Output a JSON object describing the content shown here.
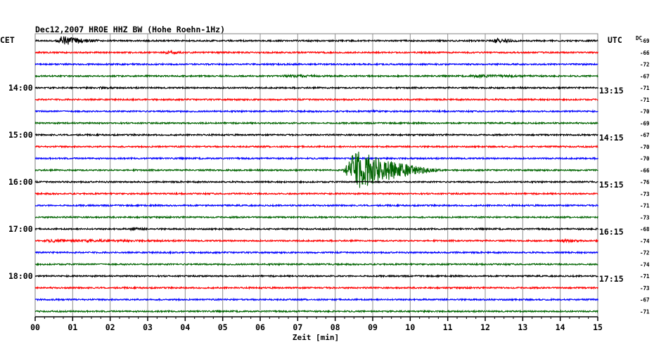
{
  "header": {
    "title": "Dec12,2007   HROE HHZ BW (Hohe Roehn-1Hz)",
    "left_tz": "CET",
    "right_tz": "UTC",
    "dc_label": "DC"
  },
  "chart_data": {
    "type": "line",
    "title": "Dec12,2007   HROE HHZ BW (Hohe Roehn-1Hz)",
    "xlabel": "Zeit [min]",
    "xlim": [
      0,
      15
    ],
    "x_ticks": [
      "00",
      "01",
      "02",
      "03",
      "04",
      "05",
      "06",
      "07",
      "08",
      "09",
      "10",
      "11",
      "12",
      "13",
      "14",
      "15"
    ],
    "grid": true,
    "left_hour_labels": [
      {
        "label": "14:00",
        "row": 4
      },
      {
        "label": "15:00",
        "row": 8
      },
      {
        "label": "16:00",
        "row": 12
      },
      {
        "label": "17:00",
        "row": 16
      },
      {
        "label": "18:00",
        "row": 20
      }
    ],
    "right_hour_labels": [
      {
        "label": "13:15",
        "row": 4
      },
      {
        "label": "14:15",
        "row": 8
      },
      {
        "label": "15:15",
        "row": 12
      },
      {
        "label": "16:15",
        "row": 16
      },
      {
        "label": "17:15",
        "row": 20
      }
    ],
    "trace_colors": [
      "#000000",
      "#ff0000",
      "#0000ff",
      "#006400"
    ],
    "dc_offsets": [
      -69,
      -66,
      -72,
      -67,
      -71,
      -71,
      -70,
      -69,
      -67,
      -70,
      -70,
      -66,
      -76,
      -73,
      -71,
      -73,
      -68,
      -74,
      -72,
      -74,
      -71,
      -73,
      -67,
      -71
    ],
    "events": [
      {
        "row": 0,
        "start_min": 0.55,
        "end_min": 1.9,
        "amp": 7
      },
      {
        "row": 0,
        "start_min": 12.2,
        "end_min": 13.0,
        "amp": 4
      },
      {
        "row": 1,
        "start_min": 3.4,
        "end_min": 4.1,
        "amp": 3
      },
      {
        "row": 3,
        "start_min": 6.5,
        "end_min": 8.5,
        "amp": 1.8
      },
      {
        "row": 3,
        "start_min": 11.5,
        "end_min": 14.0,
        "amp": 2.2
      },
      {
        "row": 4,
        "start_min": 1.7,
        "end_min": 2.2,
        "amp": 2
      },
      {
        "row": 6,
        "start_min": 8.9,
        "end_min": 9.4,
        "amp": 2
      },
      {
        "row": 11,
        "start_min": 8.2,
        "end_min": 11.0,
        "amp": 28
      },
      {
        "row": 16,
        "start_min": 2.5,
        "end_min": 3.1,
        "amp": 2.5
      },
      {
        "row": 17,
        "start_min": 0.0,
        "end_min": 4.3,
        "amp": 2.2
      },
      {
        "row": 17,
        "start_min": 14.0,
        "end_min": 14.7,
        "amp": 2.5
      }
    ]
  }
}
